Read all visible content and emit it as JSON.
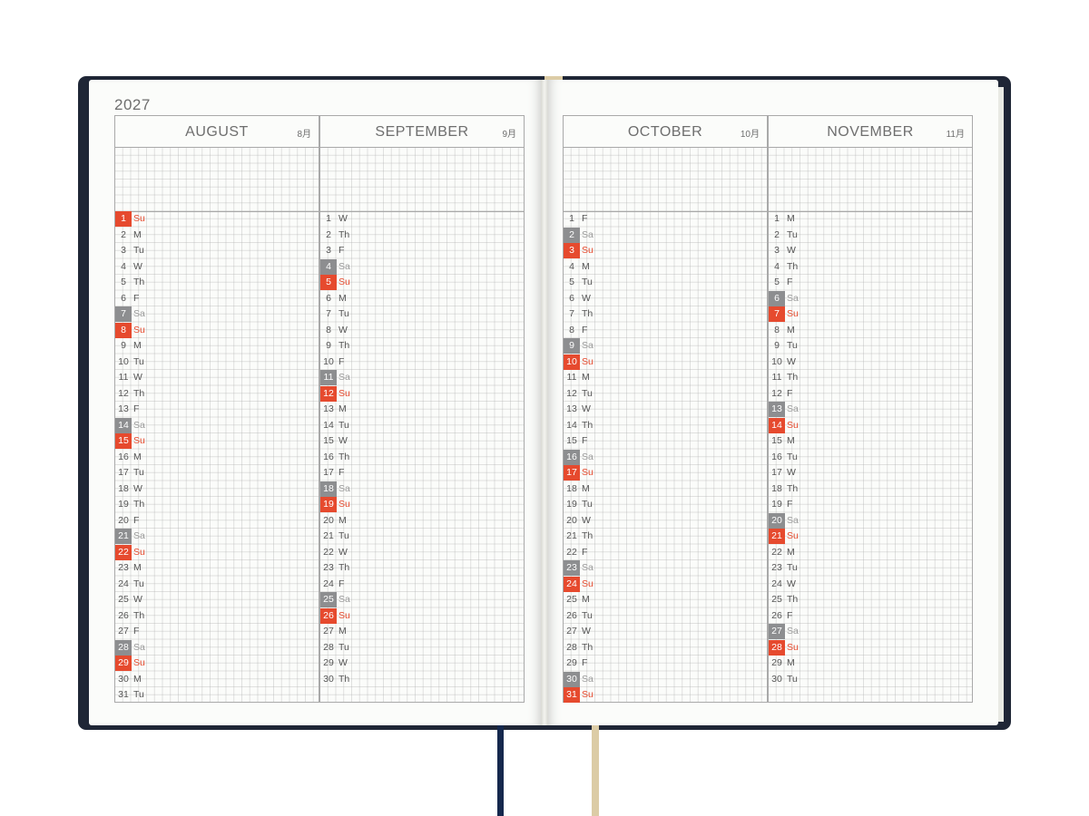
{
  "year": "2027",
  "months": [
    {
      "name": "AUGUST",
      "jp": "8月",
      "days": [
        {
          "n": "1",
          "d": "Su"
        },
        {
          "n": "2",
          "d": "M"
        },
        {
          "n": "3",
          "d": "Tu"
        },
        {
          "n": "4",
          "d": "W"
        },
        {
          "n": "5",
          "d": "Th"
        },
        {
          "n": "6",
          "d": "F"
        },
        {
          "n": "7",
          "d": "Sa"
        },
        {
          "n": "8",
          "d": "Su"
        },
        {
          "n": "9",
          "d": "M"
        },
        {
          "n": "10",
          "d": "Tu"
        },
        {
          "n": "11",
          "d": "W"
        },
        {
          "n": "12",
          "d": "Th"
        },
        {
          "n": "13",
          "d": "F"
        },
        {
          "n": "14",
          "d": "Sa"
        },
        {
          "n": "15",
          "d": "Su"
        },
        {
          "n": "16",
          "d": "M"
        },
        {
          "n": "17",
          "d": "Tu"
        },
        {
          "n": "18",
          "d": "W"
        },
        {
          "n": "19",
          "d": "Th"
        },
        {
          "n": "20",
          "d": "F"
        },
        {
          "n": "21",
          "d": "Sa"
        },
        {
          "n": "22",
          "d": "Su"
        },
        {
          "n": "23",
          "d": "M"
        },
        {
          "n": "24",
          "d": "Tu"
        },
        {
          "n": "25",
          "d": "W"
        },
        {
          "n": "26",
          "d": "Th"
        },
        {
          "n": "27",
          "d": "F"
        },
        {
          "n": "28",
          "d": "Sa"
        },
        {
          "n": "29",
          "d": "Su"
        },
        {
          "n": "30",
          "d": "M"
        },
        {
          "n": "31",
          "d": "Tu"
        }
      ]
    },
    {
      "name": "SEPTEMBER",
      "jp": "9月",
      "days": [
        {
          "n": "1",
          "d": "W"
        },
        {
          "n": "2",
          "d": "Th"
        },
        {
          "n": "3",
          "d": "F"
        },
        {
          "n": "4",
          "d": "Sa"
        },
        {
          "n": "5",
          "d": "Su"
        },
        {
          "n": "6",
          "d": "M"
        },
        {
          "n": "7",
          "d": "Tu"
        },
        {
          "n": "8",
          "d": "W"
        },
        {
          "n": "9",
          "d": "Th"
        },
        {
          "n": "10",
          "d": "F"
        },
        {
          "n": "11",
          "d": "Sa"
        },
        {
          "n": "12",
          "d": "Su"
        },
        {
          "n": "13",
          "d": "M"
        },
        {
          "n": "14",
          "d": "Tu"
        },
        {
          "n": "15",
          "d": "W"
        },
        {
          "n": "16",
          "d": "Th"
        },
        {
          "n": "17",
          "d": "F"
        },
        {
          "n": "18",
          "d": "Sa"
        },
        {
          "n": "19",
          "d": "Su"
        },
        {
          "n": "20",
          "d": "M"
        },
        {
          "n": "21",
          "d": "Tu"
        },
        {
          "n": "22",
          "d": "W"
        },
        {
          "n": "23",
          "d": "Th"
        },
        {
          "n": "24",
          "d": "F"
        },
        {
          "n": "25",
          "d": "Sa"
        },
        {
          "n": "26",
          "d": "Su"
        },
        {
          "n": "27",
          "d": "M"
        },
        {
          "n": "28",
          "d": "Tu"
        },
        {
          "n": "29",
          "d": "W"
        },
        {
          "n": "30",
          "d": "Th"
        }
      ]
    },
    {
      "name": "OCTOBER",
      "jp": "10月",
      "days": [
        {
          "n": "1",
          "d": "F"
        },
        {
          "n": "2",
          "d": "Sa"
        },
        {
          "n": "3",
          "d": "Su"
        },
        {
          "n": "4",
          "d": "M"
        },
        {
          "n": "5",
          "d": "Tu"
        },
        {
          "n": "6",
          "d": "W"
        },
        {
          "n": "7",
          "d": "Th"
        },
        {
          "n": "8",
          "d": "F"
        },
        {
          "n": "9",
          "d": "Sa"
        },
        {
          "n": "10",
          "d": "Su"
        },
        {
          "n": "11",
          "d": "M"
        },
        {
          "n": "12",
          "d": "Tu"
        },
        {
          "n": "13",
          "d": "W"
        },
        {
          "n": "14",
          "d": "Th"
        },
        {
          "n": "15",
          "d": "F"
        },
        {
          "n": "16",
          "d": "Sa"
        },
        {
          "n": "17",
          "d": "Su"
        },
        {
          "n": "18",
          "d": "M"
        },
        {
          "n": "19",
          "d": "Tu"
        },
        {
          "n": "20",
          "d": "W"
        },
        {
          "n": "21",
          "d": "Th"
        },
        {
          "n": "22",
          "d": "F"
        },
        {
          "n": "23",
          "d": "Sa"
        },
        {
          "n": "24",
          "d": "Su"
        },
        {
          "n": "25",
          "d": "M"
        },
        {
          "n": "26",
          "d": "Tu"
        },
        {
          "n": "27",
          "d": "W"
        },
        {
          "n": "28",
          "d": "Th"
        },
        {
          "n": "29",
          "d": "F"
        },
        {
          "n": "30",
          "d": "Sa"
        },
        {
          "n": "31",
          "d": "Su"
        }
      ]
    },
    {
      "name": "NOVEMBER",
      "jp": "11月",
      "days": [
        {
          "n": "1",
          "d": "M"
        },
        {
          "n": "2",
          "d": "Tu"
        },
        {
          "n": "3",
          "d": "W"
        },
        {
          "n": "4",
          "d": "Th"
        },
        {
          "n": "5",
          "d": "F"
        },
        {
          "n": "6",
          "d": "Sa"
        },
        {
          "n": "7",
          "d": "Su"
        },
        {
          "n": "8",
          "d": "M"
        },
        {
          "n": "9",
          "d": "Tu"
        },
        {
          "n": "10",
          "d": "W"
        },
        {
          "n": "11",
          "d": "Th"
        },
        {
          "n": "12",
          "d": "F"
        },
        {
          "n": "13",
          "d": "Sa"
        },
        {
          "n": "14",
          "d": "Su"
        },
        {
          "n": "15",
          "d": "M"
        },
        {
          "n": "16",
          "d": "Tu"
        },
        {
          "n": "17",
          "d": "W"
        },
        {
          "n": "18",
          "d": "Th"
        },
        {
          "n": "19",
          "d": "F"
        },
        {
          "n": "20",
          "d": "Sa"
        },
        {
          "n": "21",
          "d": "Su"
        },
        {
          "n": "22",
          "d": "M"
        },
        {
          "n": "23",
          "d": "Tu"
        },
        {
          "n": "24",
          "d": "W"
        },
        {
          "n": "25",
          "d": "Th"
        },
        {
          "n": "26",
          "d": "F"
        },
        {
          "n": "27",
          "d": "Sa"
        },
        {
          "n": "28",
          "d": "Su"
        },
        {
          "n": "29",
          "d": "M"
        },
        {
          "n": "30",
          "d": "Tu"
        }
      ]
    }
  ],
  "colors": {
    "cover": "#1f2636",
    "sunday": "#e64a2e",
    "saturday": "#8d8e90",
    "ribbon_navy": "#15284d",
    "ribbon_tan": "#dccca6"
  }
}
